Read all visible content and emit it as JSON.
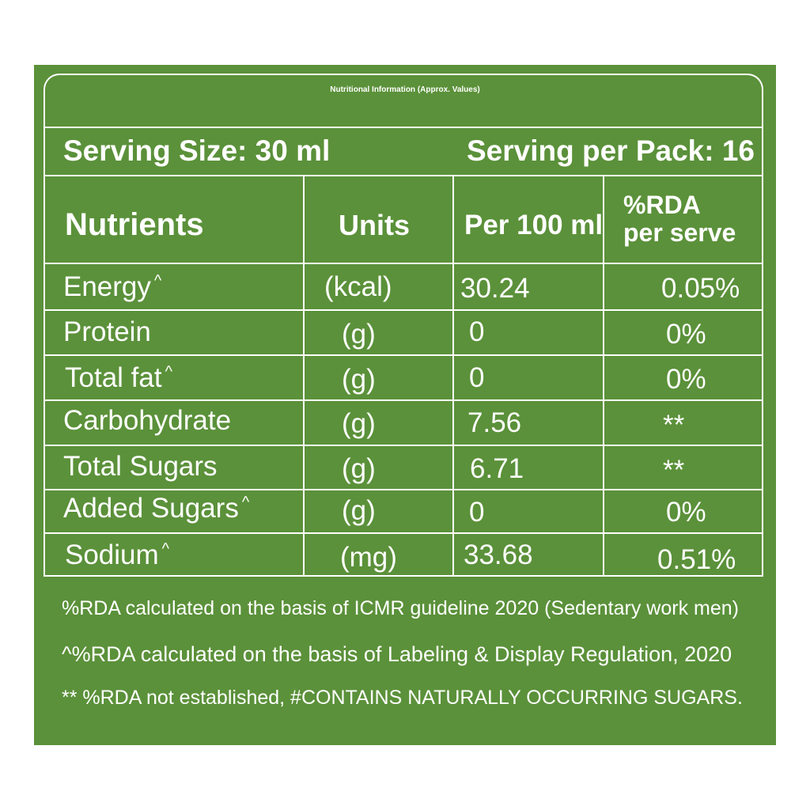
{
  "label": {
    "title": "Nutritional Information (Approx. Values)",
    "serving_size": "Serving Size: 30 ml",
    "serving_per_pack": "Serving per Pack: 16",
    "columns": {
      "nutrients": "Nutrients",
      "units": "Units",
      "per_100": "Per 100 ml",
      "rda_line1": "%RDA",
      "rda_line2": "per serve"
    },
    "rows": [
      {
        "name": "Energy",
        "caret": "^",
        "unit": "(kcal)",
        "per100": "30.24",
        "rda": "0.05%"
      },
      {
        "name": "Protein",
        "caret": "",
        "unit": "(g)",
        "per100": "0",
        "rda": "0%"
      },
      {
        "name": "Total fat",
        "caret": "^",
        "unit": "(g)",
        "per100": "0",
        "rda": "0%"
      },
      {
        "name": "Carbohydrate",
        "caret": "",
        "unit": "(g)",
        "per100": "7.56",
        "rda": "**"
      },
      {
        "name": "Total Sugars",
        "caret": "",
        "unit": "(g)",
        "per100": "6.71",
        "rda": "**"
      },
      {
        "name": "Added Sugars",
        "caret": "^",
        "unit": "(g)",
        "per100": "0",
        "rda": "0%"
      },
      {
        "name": "Sodium",
        "caret": "^",
        "unit": "(mg)",
        "per100": "33.68",
        "rda": "0.51%"
      }
    ],
    "footnotes": [
      "%RDA calculated on the basis of ICMR guideline 2020 (Sedentary work men)",
      "^%RDA calculated on the basis of Labeling & Display Regulation, 2020",
      "** %RDA not established, #CONTAINS NATURALLY OCCURRING SUGARS."
    ]
  },
  "colors": {
    "background": "#5b913a",
    "text": "#ffffff"
  }
}
